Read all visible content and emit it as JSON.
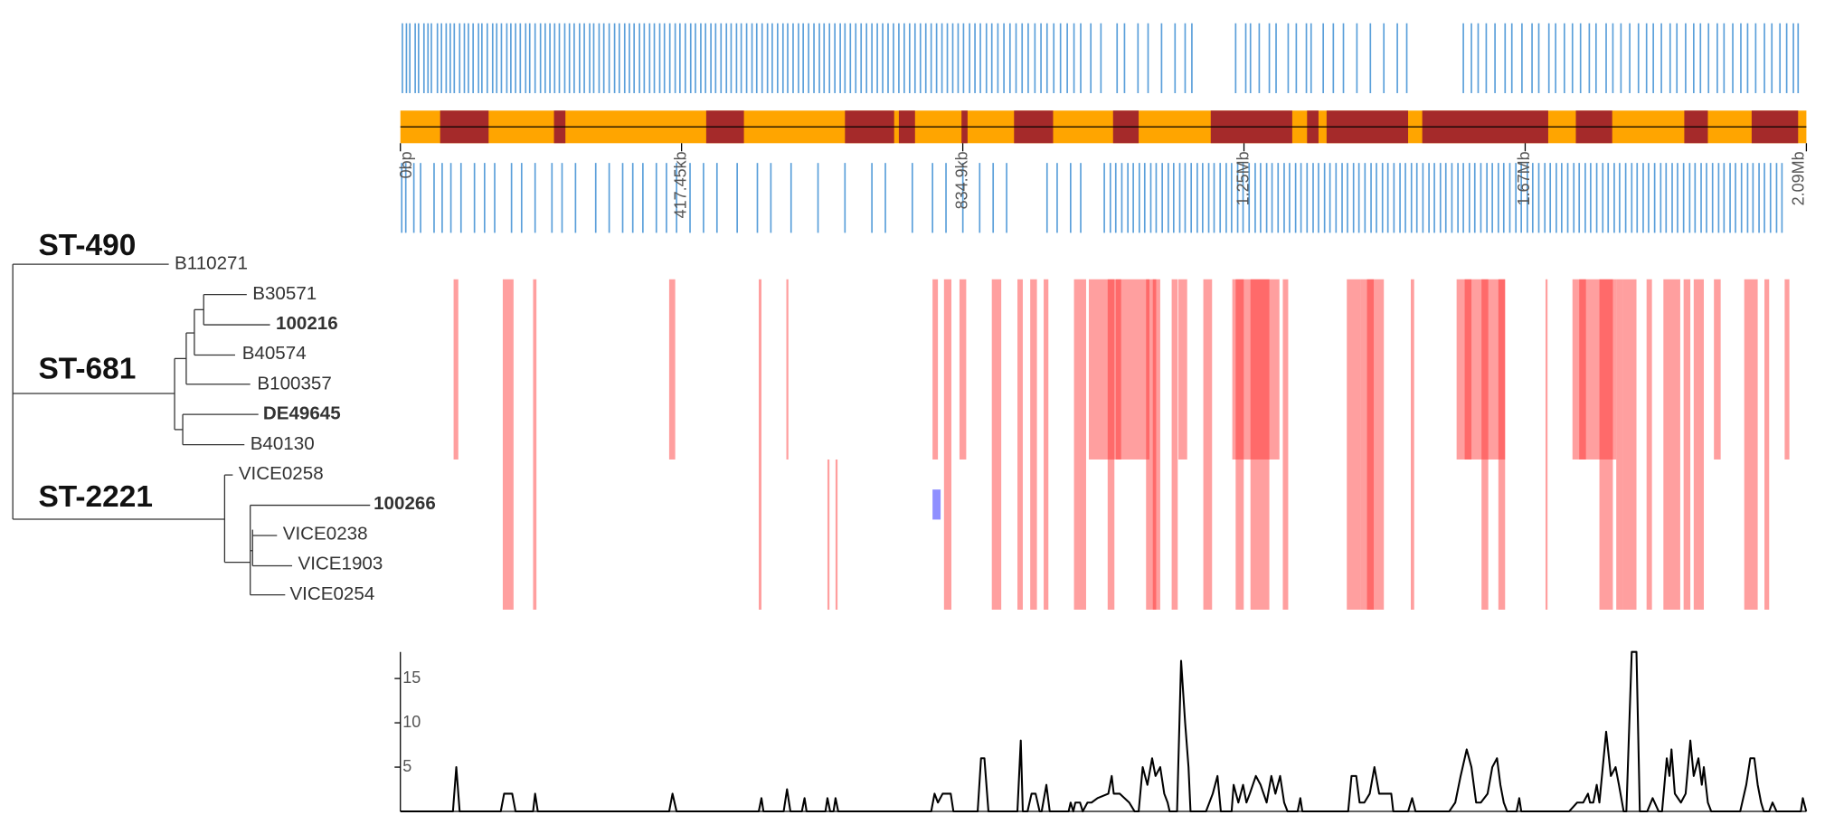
{
  "tree": {
    "clades": [
      {
        "label": "ST-490"
      },
      {
        "label": "ST-681"
      },
      {
        "label": "ST-2221"
      }
    ],
    "tips": [
      {
        "label": "B110271"
      },
      {
        "label": "B30571"
      },
      {
        "label": "100216",
        "bold": true
      },
      {
        "label": "B40574"
      },
      {
        "label": "B100357"
      },
      {
        "label": "DE49645",
        "bold": true
      },
      {
        "label": "B40130"
      },
      {
        "label": "VICE0258"
      },
      {
        "label": "100266",
        "bold": true
      },
      {
        "label": "VICE0238"
      },
      {
        "label": "VICE1903"
      },
      {
        "label": "VICE0254"
      }
    ]
  },
  "genome": {
    "xlim": [
      0,
      2087250
    ],
    "xticks": [
      {
        "value": 0,
        "label": "0bp"
      },
      {
        "value": 417450,
        "label": "417.45kb"
      },
      {
        "value": 834900,
        "label": "834.9kb"
      },
      {
        "value": 1252350,
        "label": "1.25Mb"
      },
      {
        "value": 1669800,
        "label": "1.67Mb"
      },
      {
        "value": 2087250,
        "label": "2.09Mb"
      }
    ],
    "gene_color": "#3d8ed3",
    "genes_forward": [
      3000,
      9000,
      14000,
      22000,
      27000,
      35000,
      41000,
      46000,
      55000,
      61000,
      68000,
      74000,
      80000,
      88000,
      95000,
      101000,
      108000,
      116000,
      121000,
      129000,
      137000,
      143000,
      150000,
      158000,
      164000,
      171000,
      178000,
      186000,
      192000,
      200000,
      208000,
      215000,
      222000,
      229000,
      236000,
      244000,
      251000,
      258000,
      266000,
      273000,
      281000,
      287000,
      295000,
      302000,
      310000,
      318000,
      325000,
      333000,
      340000,
      347000,
      355000,
      362000,
      370000,
      377000,
      385000,
      392000,
      400000,
      408000,
      415000,
      423000,
      431000,
      438000,
      446000,
      453000,
      461000,
      468000,
      476000,
      484000,
      491000,
      499000,
      506000,
      514000,
      522000,
      529000,
      537000,
      545000,
      552000,
      560000,
      568000,
      575000,
      583000,
      591000,
      598000,
      606000,
      614000,
      622000,
      629000,
      637000,
      645000,
      653000,
      660000,
      668000,
      676000,
      684000,
      692000,
      700000,
      708000,
      716000,
      724000,
      732000,
      740000,
      748000,
      756000,
      764000,
      772000,
      780000,
      788000,
      796000,
      804000,
      812000,
      820000,
      828000,
      836000,
      845000,
      853000,
      861000,
      870000,
      878000,
      887000,
      896000,
      905000,
      914000,
      923000,
      932000,
      942000,
      951000,
      960000,
      970000,
      980000,
      990000,
      1000000,
      1010000,
      1025000,
      1040000,
      1064000,
      1075000,
      1095000,
      1110000,
      1130000,
      1150000,
      1165000,
      1175000,
      1240000,
      1255000,
      1262000,
      1275000,
      1290000,
      1300000,
      1318000,
      1330000,
      1345000,
      1352000,
      1370000,
      1385000,
      1400000,
      1420000,
      1440000,
      1460000,
      1480000,
      1494000,
      1578000,
      1590000,
      1600000,
      1612000,
      1625000,
      1640000,
      1650000,
      1665000,
      1680000,
      1690000,
      1705000,
      1715000,
      1728000,
      1740000,
      1752000,
      1765000,
      1775000,
      1790000,
      1800000,
      1812000,
      1825000,
      1838000,
      1850000,
      1860000,
      1872000,
      1885000,
      1895000,
      1908000,
      1920000,
      1930000,
      1942000,
      1955000,
      1965000,
      1978000,
      1990000,
      2000000,
      2012000,
      2025000,
      2036000,
      2048000,
      2058000,
      2068000,
      2075000
    ],
    "genes_reverse": [
      2000,
      8000,
      20000,
      30000,
      50000,
      62000,
      75000,
      90000,
      110000,
      125000,
      140000,
      165000,
      180000,
      200000,
      225000,
      240000,
      260000,
      290000,
      310000,
      330000,
      345000,
      360000,
      380000,
      395000,
      410000,
      430000,
      450000,
      470000,
      500000,
      530000,
      550000,
      580000,
      620000,
      660000,
      700000,
      720000,
      760000,
      790000,
      810000,
      835000,
      860000,
      880000,
      900000,
      960000,
      975000,
      995000,
      1010000,
      1045000,
      1054000,
      1062000,
      1071000,
      1080000,
      1088000,
      1097000,
      1105000,
      1114000,
      1122000,
      1131000,
      1140000,
      1148000,
      1157000,
      1165000,
      1174000,
      1183000,
      1191000,
      1200000,
      1208000,
      1217000,
      1226000,
      1234000,
      1243000,
      1251000,
      1260000,
      1269000,
      1277000,
      1286000,
      1294000,
      1303000,
      1312000,
      1320000,
      1329000,
      1337000,
      1346000,
      1355000,
      1363000,
      1372000,
      1380000,
      1389000,
      1398000,
      1406000,
      1415000,
      1423000,
      1432000,
      1441000,
      1449000,
      1458000,
      1466000,
      1475000,
      1484000,
      1492000,
      1501000,
      1509000,
      1518000,
      1527000,
      1535000,
      1544000,
      1552000,
      1561000,
      1570000,
      1578000,
      1587000,
      1595000,
      1604000,
      1613000,
      1621000,
      1630000,
      1638000,
      1647000,
      1656000,
      1664000,
      1673000,
      1681000,
      1690000,
      1699000,
      1707000,
      1716000,
      1724000,
      1733000,
      1742000,
      1750000,
      1759000,
      1767000,
      1776000,
      1785000,
      1793000,
      1802000,
      1810000,
      1819000,
      1828000,
      1836000,
      1845000,
      1853000,
      1862000,
      1871000,
      1879000,
      1888000,
      1896000,
      1905000,
      1914000,
      1922000,
      1931000,
      1939000,
      1948000,
      1957000,
      1965000,
      1974000,
      1982000,
      1991000,
      2000000,
      2008000,
      2017000,
      2025000,
      2034000,
      2043000,
      2051000
    ],
    "segment_colors": [
      "#ffa500",
      "#a52a2a"
    ],
    "segments": [
      [
        59000,
        131000
      ],
      [
        228000,
        245000
      ],
      [
        454000,
        510000
      ],
      [
        660000,
        733000
      ],
      [
        740000,
        764000
      ],
      [
        833000,
        842000
      ],
      [
        911000,
        969000
      ],
      [
        1058000,
        1096000
      ],
      [
        1203000,
        1324000
      ],
      [
        1346000,
        1363000
      ],
      [
        1375000,
        1496000
      ],
      [
        1517000,
        1704000
      ],
      [
        1745000,
        1799000
      ],
      [
        1906000,
        1941000
      ],
      [
        2006000,
        2075000
      ]
    ],
    "recombination_color": "#ff2a2a",
    "recombinations": [
      [
        79000,
        86000,
        1,
        6
      ],
      [
        152000,
        168000,
        1,
        11
      ],
      [
        197000,
        202000,
        1,
        11
      ],
      [
        399000,
        408000,
        1,
        6
      ],
      [
        532000,
        536000,
        1,
        11
      ],
      [
        573000,
        576000,
        1,
        6
      ],
      [
        634000,
        637000,
        7,
        11
      ],
      [
        646000,
        649000,
        7,
        11
      ],
      [
        790000,
        798000,
        1,
        6
      ],
      [
        807000,
        818000,
        1,
        11
      ],
      [
        830000,
        840000,
        1,
        6
      ],
      [
        878000,
        892000,
        1,
        11
      ],
      [
        916000,
        924000,
        1,
        11
      ],
      [
        935000,
        945000,
        1,
        11
      ],
      [
        955000,
        962000,
        1,
        11
      ],
      [
        1000000,
        1018000,
        1,
        11
      ],
      [
        1022000,
        1112000,
        1,
        6
      ],
      [
        1050000,
        1060000,
        1,
        11
      ],
      [
        1062000,
        1070000,
        1,
        6
      ],
      [
        1107000,
        1128000,
        1,
        11
      ],
      [
        1117000,
        1122000,
        1,
        11
      ],
      [
        1145000,
        1154000,
        1,
        11
      ],
      [
        1155000,
        1168000,
        1,
        6
      ],
      [
        1192000,
        1205000,
        1,
        11
      ],
      [
        1235000,
        1305000,
        1,
        6
      ],
      [
        1240000,
        1252000,
        1,
        11
      ],
      [
        1262000,
        1290000,
        1,
        11
      ],
      [
        1310000,
        1318000,
        1,
        11
      ],
      [
        1405000,
        1425000,
        1,
        11
      ],
      [
        1425000,
        1460000,
        1,
        11
      ],
      [
        1435000,
        1445000,
        1,
        11
      ],
      [
        1500000,
        1505000,
        1,
        11
      ],
      [
        1568000,
        1640000,
        1,
        6
      ],
      [
        1580000,
        1590000,
        1,
        6
      ],
      [
        1605000,
        1615000,
        1,
        11
      ],
      [
        1630000,
        1640000,
        1,
        11
      ],
      [
        1700000,
        1703000,
        1,
        11
      ],
      [
        1740000,
        1805000,
        1,
        6
      ],
      [
        1750000,
        1760000,
        1,
        6
      ],
      [
        1780000,
        1800000,
        1,
        11
      ],
      [
        1805000,
        1815000,
        1,
        11
      ],
      [
        1815000,
        1835000,
        1,
        11
      ],
      [
        1850000,
        1858000,
        1,
        11
      ],
      [
        1875000,
        1900000,
        1,
        11
      ],
      [
        1905000,
        1915000,
        1,
        11
      ],
      [
        1920000,
        1935000,
        1,
        11
      ],
      [
        1950000,
        1960000,
        1,
        6
      ],
      [
        1995000,
        2015000,
        1,
        11
      ],
      [
        2025000,
        2032000,
        1,
        11
      ],
      [
        2055000,
        2062000,
        1,
        6
      ]
    ],
    "minor_color": "#6a6aff",
    "minor_recombinations": [
      [
        790000,
        802000,
        8,
        8
      ]
    ]
  },
  "chart_data": {
    "type": "line",
    "color": "#000000",
    "xlim": [
      0,
      2087250
    ],
    "ylim": [
      0,
      18
    ],
    "yticks": [
      5,
      10,
      15
    ],
    "x": [
      0,
      78000,
      83000,
      88000,
      149000,
      154000,
      166000,
      171000,
      197000,
      200000,
      204000,
      399000,
      404000,
      410000,
      532000,
      536000,
      539000,
      569000,
      574000,
      579000,
      596000,
      600000,
      603000,
      631000,
      634000,
      638000,
      643000,
      646000,
      650000,
      788000,
      793000,
      798000,
      805000,
      817000,
      821000,
      857000,
      862000,
      867000,
      873000,
      916000,
      921000,
      924000,
      931000,
      937000,
      943000,
      949000,
      952000,
      959000,
      964000,
      992000,
      995000,
      999000,
      1002000,
      1009000,
      1013000,
      1020000,
      1026000,
      1035000,
      1051000,
      1056000,
      1059000,
      1068000,
      1082000,
      1090000,
      1096000,
      1102000,
      1109000,
      1116000,
      1121000,
      1128000,
      1134000,
      1139000,
      1142000,
      1153000,
      1159000,
      1165000,
      1170000,
      1173000,
      1196000,
      1206000,
      1213000,
      1218000,
      1234000,
      1237000,
      1244000,
      1251000,
      1256000,
      1261000,
      1270000,
      1277000,
      1286000,
      1293000,
      1299000,
      1306000,
      1312000,
      1317000,
      1332000,
      1336000,
      1339000,
      1407000,
      1412000,
      1419000,
      1424000,
      1431000,
      1439000,
      1446000,
      1453000,
      1460000,
      1471000,
      1474000,
      1496000,
      1502000,
      1507000,
      1557000,
      1566000,
      1574000,
      1583000,
      1590000,
      1597000,
      1604000,
      1614000,
      1621000,
      1628000,
      1633000,
      1638000,
      1643000,
      1657000,
      1661000,
      1664000,
      1735000,
      1747000,
      1756000,
      1763000,
      1766000,
      1771000,
      1776000,
      1780000,
      1790000,
      1797000,
      1804000,
      1809000,
      1816000,
      1820000,
      1828000,
      1835000,
      1840000,
      1851000,
      1859000,
      1868000,
      1873000,
      1880000,
      1884000,
      1887000,
      1892000,
      1901000,
      1908000,
      1915000,
      1920000,
      1927000,
      1932000,
      1935000,
      1941000,
      1946000,
      1989000,
      1998000,
      2004000,
      2010000,
      2015000,
      2020000,
      2024000,
      2032000,
      2037000,
      2043000,
      2079000,
      2082000,
      2087000
    ],
    "values": [
      0,
      0,
      5,
      0,
      0,
      2,
      2,
      0,
      0,
      2,
      0,
      0,
      2,
      0,
      0,
      1.5,
      0,
      0,
      2.5,
      0,
      0,
      1.5,
      0,
      0,
      1.5,
      0,
      0,
      1.5,
      0,
      0,
      2,
      1,
      2,
      2,
      0,
      0,
      6,
      6,
      0,
      0,
      8,
      0,
      0,
      2,
      2,
      0,
      0,
      3,
      0,
      0,
      1,
      0,
      1,
      1,
      0,
      1,
      1,
      1.5,
      2,
      4,
      2,
      2,
      1,
      0,
      0,
      5,
      3,
      6,
      4,
      5,
      2,
      1,
      0,
      0,
      17,
      10,
      5,
      0,
      0,
      2,
      4,
      0,
      0,
      3,
      1,
      3,
      1,
      2,
      4,
      3,
      1,
      4,
      2,
      4,
      1,
      0,
      0,
      1.5,
      0,
      0,
      4,
      4,
      1,
      1,
      2,
      5,
      2,
      2,
      2,
      0,
      0,
      1.5,
      0,
      0,
      1,
      4,
      7,
      5,
      1,
      1,
      2,
      5,
      6,
      3,
      1,
      0,
      0,
      1.5,
      0,
      0,
      1,
      1,
      2,
      1,
      1,
      3,
      1,
      9,
      4,
      5,
      3,
      0,
      0,
      18,
      18,
      0,
      0,
      1.5,
      0,
      0,
      6,
      4,
      7,
      2,
      1,
      2,
      8,
      4,
      6,
      3,
      5,
      1,
      0,
      0,
      3,
      6,
      6,
      3,
      1,
      0,
      0,
      1,
      0,
      0,
      1.5,
      0
    ]
  }
}
